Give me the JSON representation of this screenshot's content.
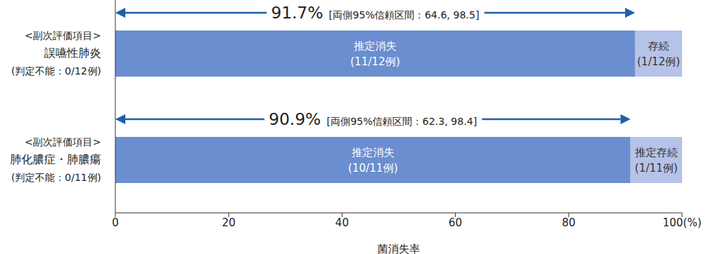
{
  "chart_data": {
    "type": "bar",
    "orientation": "horizontal",
    "stacked": true,
    "categories": [
      "<副次評価項目>\n誤嚥性肺炎\n(判定不能：0/12例)",
      "<副次評価項目>\n肺化膿症・肺膿瘍\n(判定不能：0/11例)"
    ],
    "series": [
      {
        "name": "推定消失",
        "color": "#6a8ecf",
        "values": [
          91.7,
          90.9
        ],
        "value_labels": [
          "推定消失\n(11/12例)",
          "推定消失\n(10/11例)"
        ]
      },
      {
        "name": "存続",
        "color": "#b6c3e8",
        "values": [
          8.3,
          9.1
        ],
        "value_labels": [
          "存続\n(1/12例)",
          "推定存続\n(1/11例)"
        ]
      }
    ],
    "x_label": "菌消失率",
    "xlim": [
      0,
      100
    ],
    "xticks": [
      0,
      20,
      40,
      60,
      80,
      {
        "value": 100,
        "label": "100(%)"
      }
    ],
    "data_labels": true,
    "grid": false,
    "annotations": [
      {
        "value": 91.7,
        "label": "91.7%",
        "note": "[両側95%信頼区間：64.6, 98.5]"
      },
      {
        "value": 90.9,
        "label": "90.9%",
        "note": "[両側95%信頼区間：62.3, 98.4]"
      }
    ]
  }
}
